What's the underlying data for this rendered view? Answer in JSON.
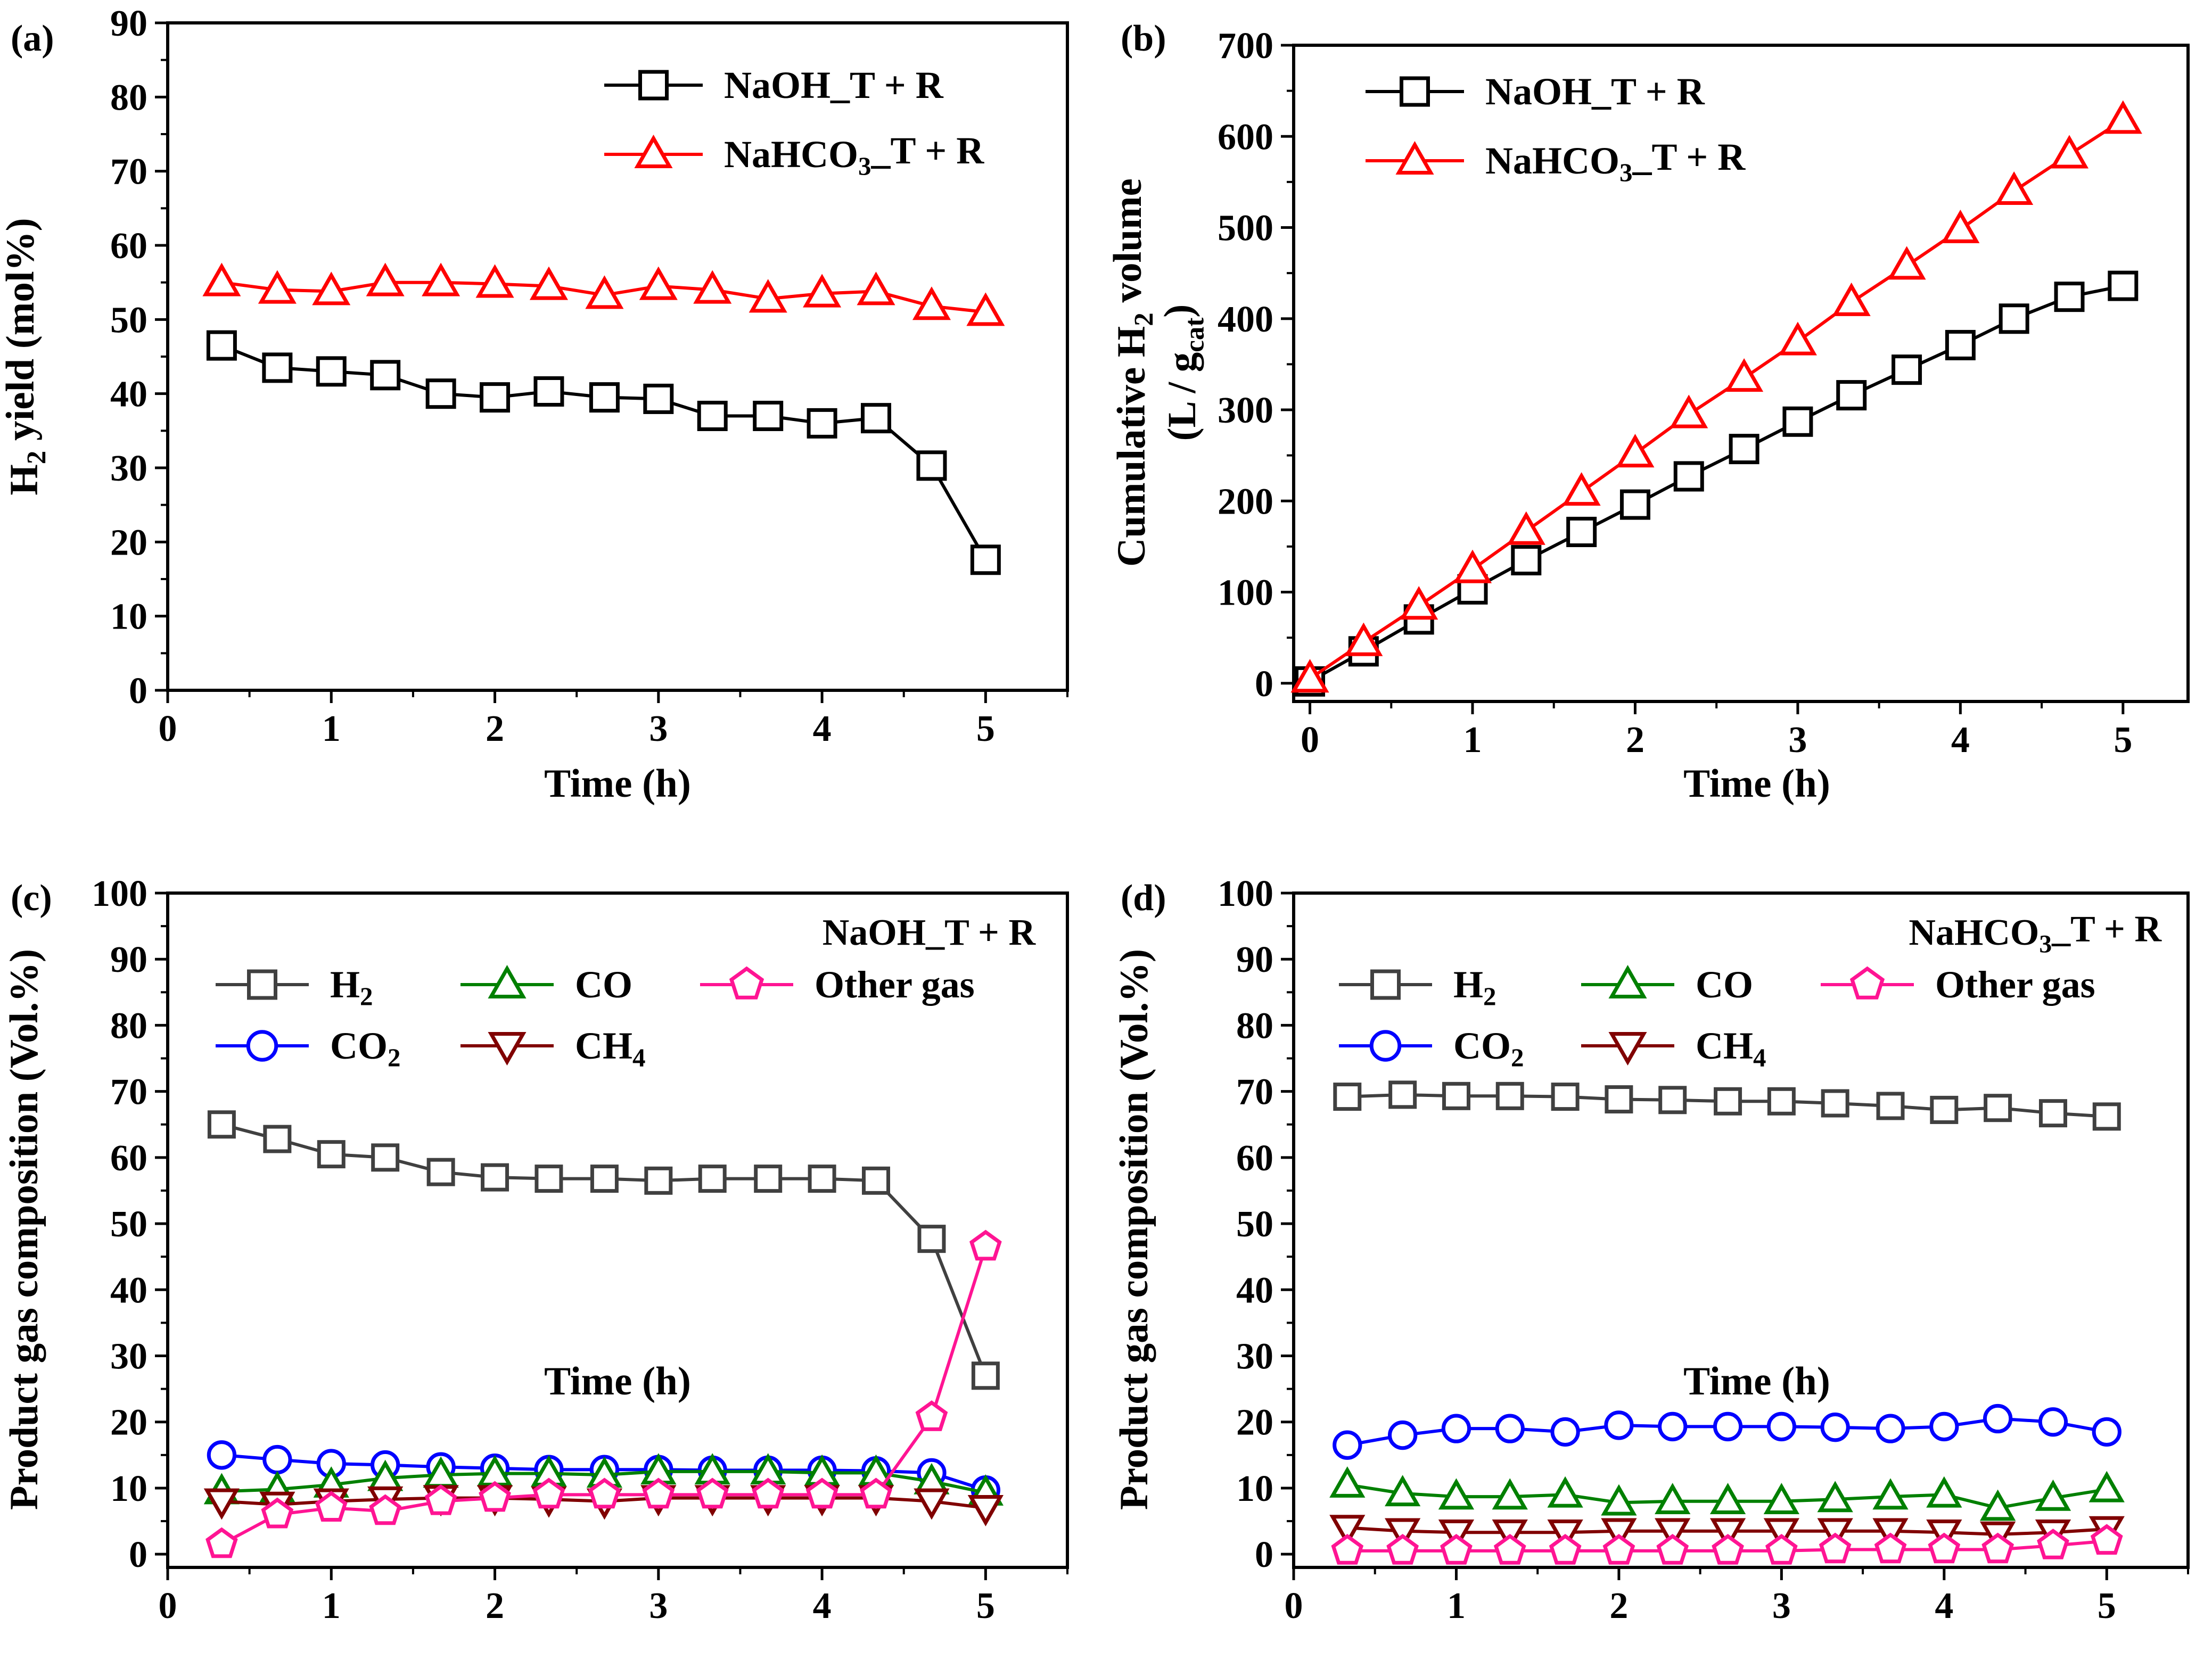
{
  "chart_data": [
    {
      "panel": "(a)",
      "type": "line",
      "xlabel": "Time (h)",
      "ylabel_parts": [
        "H",
        "2",
        " yield (mol%)"
      ],
      "xlim": [
        0,
        5.5
      ],
      "ylim": [
        0,
        90
      ],
      "xticks": [
        0,
        1,
        2,
        3,
        4,
        5
      ],
      "yticks": [
        0,
        10,
        20,
        30,
        40,
        50,
        60,
        70,
        80,
        90
      ],
      "legend_position": "top-right",
      "series": [
        {
          "name": "NaOH_T + R",
          "label_parts": [
            "NaOH_T + R"
          ],
          "color": "#000000",
          "marker": "square",
          "x": [
            0.33,
            0.67,
            1.0,
            1.33,
            1.67,
            2.0,
            2.33,
            2.67,
            3.0,
            3.33,
            3.67,
            4.0,
            4.33,
            4.67,
            5.0
          ],
          "y": [
            46.5,
            43.5,
            43.0,
            42.5,
            40.0,
            39.5,
            40.3,
            39.5,
            39.3,
            37.0,
            37.0,
            36.0,
            36.7,
            30.3,
            17.6
          ]
        },
        {
          "name": "NaHCO3_T + R",
          "label_parts": [
            "NaHCO",
            "3",
            "_T + R"
          ],
          "color": "#ff0000",
          "marker": "triangle-up",
          "x": [
            0.33,
            0.67,
            1.0,
            1.33,
            1.67,
            2.0,
            2.33,
            2.67,
            3.0,
            3.33,
            3.67,
            4.0,
            4.33,
            4.67,
            5.0
          ],
          "y": [
            55.0,
            54.0,
            53.8,
            55.0,
            55.0,
            54.8,
            54.5,
            53.3,
            54.5,
            54.0,
            52.8,
            53.5,
            53.8,
            51.8,
            51.0
          ]
        }
      ]
    },
    {
      "panel": "(b)",
      "type": "line",
      "xlabel": "Time (h)",
      "ylabel_parts": [
        "Cumulative H",
        "2",
        " volume"
      ],
      "ylabel2_parts": [
        "(L / g",
        "cat",
        ")"
      ],
      "xlim": [
        -0.1,
        5.4
      ],
      "ylim": [
        -20,
        700
      ],
      "xticks": [
        0,
        1,
        2,
        3,
        4,
        5
      ],
      "yticks": [
        0,
        100,
        200,
        300,
        400,
        500,
        600,
        700
      ],
      "legend_position": "top-left",
      "series": [
        {
          "name": "NaOH_T + R",
          "label_parts": [
            "NaOH_T + R"
          ],
          "color": "#000000",
          "marker": "square",
          "x": [
            0,
            0.33,
            0.67,
            1.0,
            1.33,
            1.67,
            2.0,
            2.33,
            2.67,
            3.0,
            3.33,
            3.67,
            4.0,
            4.33,
            4.67,
            5.0
          ],
          "y": [
            2,
            35,
            70,
            103,
            135,
            166,
            196,
            227,
            257,
            287,
            316,
            344,
            371,
            400,
            424,
            436
          ]
        },
        {
          "name": "NaHCO3_T + R",
          "label_parts": [
            "NaHCO",
            "3",
            "_T + R"
          ],
          "color": "#ff0000",
          "marker": "triangle-up",
          "x": [
            0,
            0.33,
            0.67,
            1.0,
            1.33,
            1.67,
            2.0,
            2.33,
            2.67,
            3.0,
            3.33,
            3.67,
            4.0,
            4.33,
            4.67,
            5.0
          ],
          "y": [
            5,
            45,
            85,
            125,
            167,
            210,
            252,
            295,
            335,
            375,
            418,
            458,
            498,
            540,
            580,
            618
          ]
        }
      ]
    },
    {
      "panel": "(c)",
      "type": "line",
      "xlabel": "Time (h)",
      "ylabel_parts": [
        "Product gas composition (Vol.%)"
      ],
      "xlim": [
        0,
        5.5
      ],
      "ylim": [
        -2,
        100
      ],
      "xticks": [
        0,
        1,
        2,
        3,
        4,
        5
      ],
      "yticks": [
        0,
        10,
        20,
        30,
        40,
        50,
        60,
        70,
        80,
        90,
        100
      ],
      "legend_position": "top",
      "annotation_parts": [
        "NaOH_T + R"
      ],
      "series": [
        {
          "name": "H2",
          "label_parts": [
            "H",
            "2",
            ""
          ],
          "color": "#404040",
          "marker": "square",
          "x": [
            0.33,
            0.67,
            1.0,
            1.33,
            1.67,
            2.0,
            2.33,
            2.67,
            3.0,
            3.33,
            3.67,
            4.0,
            4.33,
            4.67,
            5.0
          ],
          "y": [
            65.0,
            62.8,
            60.5,
            60.0,
            57.8,
            57.0,
            56.8,
            56.8,
            56.5,
            56.8,
            56.8,
            56.8,
            56.5,
            47.7,
            27.0
          ]
        },
        {
          "name": "CO2",
          "label_parts": [
            "CO",
            "2",
            ""
          ],
          "color": "#0000ff",
          "marker": "circle",
          "x": [
            0.33,
            0.67,
            1.0,
            1.33,
            1.67,
            2.0,
            2.33,
            2.67,
            3.0,
            3.33,
            3.67,
            4.0,
            4.33,
            4.67,
            5.0
          ],
          "y": [
            15.0,
            14.3,
            13.7,
            13.5,
            13.2,
            13.0,
            12.8,
            12.8,
            12.8,
            12.7,
            12.7,
            12.7,
            12.6,
            12.3,
            9.7
          ]
        },
        {
          "name": "CO",
          "label_parts": [
            "CO"
          ],
          "color": "#008000",
          "marker": "triangle-up",
          "x": [
            0.33,
            0.67,
            1.0,
            1.33,
            1.67,
            2.0,
            2.33,
            2.67,
            3.0,
            3.33,
            3.67,
            4.0,
            4.33,
            4.67,
            5.0
          ],
          "y": [
            9.5,
            9.8,
            10.5,
            11.5,
            12.0,
            12.2,
            12.2,
            12.0,
            12.5,
            12.5,
            12.5,
            12.3,
            12.3,
            11.0,
            9.3
          ]
        },
        {
          "name": "CH4",
          "label_parts": [
            "CH",
            "4",
            ""
          ],
          "color": "#800000",
          "marker": "triangle-down",
          "x": [
            0.33,
            0.67,
            1.0,
            1.33,
            1.67,
            2.0,
            2.33,
            2.67,
            3.0,
            3.33,
            3.67,
            4.0,
            4.33,
            4.67,
            5.0
          ],
          "y": [
            8.0,
            7.5,
            8.0,
            8.3,
            8.5,
            8.5,
            8.3,
            8.0,
            8.5,
            8.5,
            8.5,
            8.5,
            8.5,
            8.0,
            7.0
          ]
        },
        {
          "name": "Other gas",
          "label_parts": [
            "Other gas"
          ],
          "color": "#ff1493",
          "marker": "pentagon",
          "x": [
            0.33,
            0.67,
            1.0,
            1.33,
            1.67,
            2.0,
            2.33,
            2.67,
            3.0,
            3.33,
            3.67,
            4.0,
            4.33,
            4.67,
            5.0
          ],
          "y": [
            1.5,
            6.0,
            7.0,
            6.5,
            8.0,
            8.5,
            9.0,
            9.0,
            9.0,
            9.0,
            9.0,
            9.0,
            9.0,
            20.7,
            46.5
          ]
        }
      ]
    },
    {
      "panel": "(d)",
      "type": "line",
      "xlabel": "Time (h)",
      "ylabel_parts": [
        "Product gas composition (Vol.%)"
      ],
      "xlim": [
        0,
        5.5
      ],
      "ylim": [
        -2,
        100
      ],
      "xticks": [
        0,
        1,
        2,
        3,
        4,
        5
      ],
      "yticks": [
        0,
        10,
        20,
        30,
        40,
        50,
        60,
        70,
        80,
        90,
        100
      ],
      "legend_position": "top",
      "annotation_parts": [
        "NaHCO",
        "3",
        "_T + R"
      ],
      "series": [
        {
          "name": "H2",
          "label_parts": [
            "H",
            "2",
            ""
          ],
          "color": "#404040",
          "marker": "square",
          "x": [
            0.33,
            0.67,
            1.0,
            1.33,
            1.67,
            2.0,
            2.33,
            2.67,
            3.0,
            3.33,
            3.67,
            4.0,
            4.33,
            4.67,
            5.0
          ],
          "y": [
            69.2,
            69.5,
            69.3,
            69.3,
            69.2,
            68.8,
            68.7,
            68.5,
            68.5,
            68.2,
            67.8,
            67.2,
            67.5,
            66.7,
            66.2
          ]
        },
        {
          "name": "CO2",
          "label_parts": [
            "CO",
            "2",
            ""
          ],
          "color": "#0000ff",
          "marker": "circle",
          "x": [
            0.33,
            0.67,
            1.0,
            1.33,
            1.67,
            2.0,
            2.33,
            2.67,
            3.0,
            3.33,
            3.67,
            4.0,
            4.33,
            4.67,
            5.0
          ],
          "y": [
            16.5,
            18.0,
            19.0,
            19.0,
            18.5,
            19.5,
            19.3,
            19.3,
            19.3,
            19.2,
            19.0,
            19.3,
            20.5,
            20.0,
            18.5
          ]
        },
        {
          "name": "CO",
          "label_parts": [
            "CO"
          ],
          "color": "#008000",
          "marker": "triangle-up",
          "x": [
            0.33,
            0.67,
            1.0,
            1.33,
            1.67,
            2.0,
            2.33,
            2.67,
            3.0,
            3.33,
            3.67,
            4.0,
            4.33,
            4.67,
            5.0
          ],
          "y": [
            10.5,
            9.2,
            8.7,
            8.7,
            9.0,
            7.8,
            8.0,
            8.0,
            8.0,
            8.3,
            8.7,
            9.0,
            7.0,
            8.5,
            9.8
          ]
        },
        {
          "name": "CH4",
          "label_parts": [
            "CH",
            "4",
            ""
          ],
          "color": "#800000",
          "marker": "triangle-down",
          "x": [
            0.33,
            0.67,
            1.0,
            1.33,
            1.67,
            2.0,
            2.33,
            2.67,
            3.0,
            3.33,
            3.67,
            4.0,
            4.33,
            4.67,
            5.0
          ],
          "y": [
            4.0,
            3.5,
            3.3,
            3.3,
            3.3,
            3.5,
            3.5,
            3.5,
            3.5,
            3.5,
            3.5,
            3.3,
            3.0,
            3.3,
            3.8
          ]
        },
        {
          "name": "Other gas",
          "label_parts": [
            "Other gas"
          ],
          "color": "#ff1493",
          "marker": "pentagon",
          "x": [
            0.33,
            0.67,
            1.0,
            1.33,
            1.67,
            2.0,
            2.33,
            2.67,
            3.0,
            3.33,
            3.67,
            4.0,
            4.33,
            4.67,
            5.0
          ],
          "y": [
            0.5,
            0.5,
            0.5,
            0.5,
            0.5,
            0.5,
            0.5,
            0.5,
            0.5,
            0.7,
            0.7,
            0.7,
            0.7,
            1.3,
            2.0
          ]
        }
      ]
    }
  ]
}
